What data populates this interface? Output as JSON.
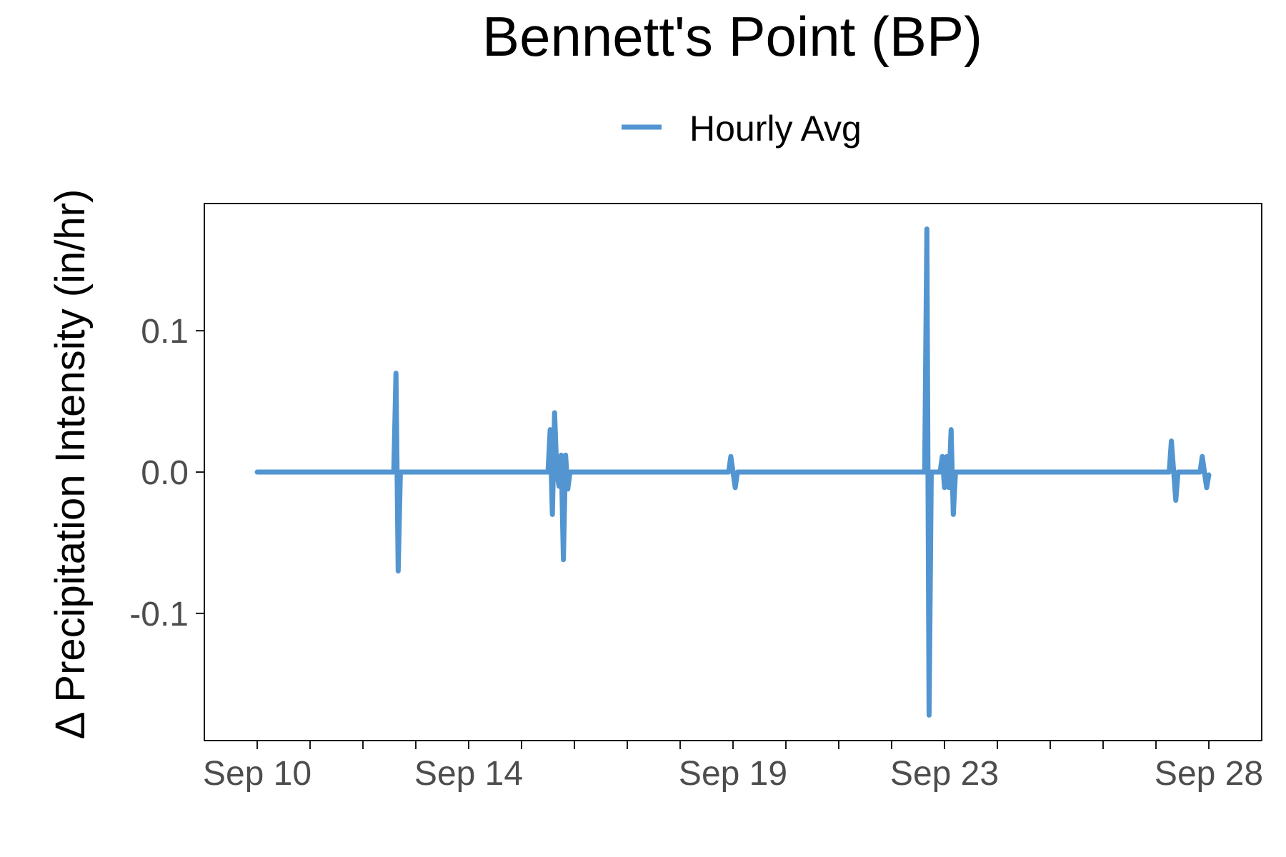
{
  "chart_data": {
    "type": "line",
    "title": "Bennett's Point (BP)",
    "ylabel": "Δ Precipitation Intensity (in/hr)",
    "xlabel": "",
    "ylim": [
      -0.19,
      0.19
    ],
    "xlim": [
      "2023-09-09T00:00",
      "2023-09-29T00:00"
    ],
    "yticks": [
      {
        "value": 0.1,
        "label": "0.1"
      },
      {
        "value": 0.0,
        "label": "0.0"
      },
      {
        "value": -0.1,
        "label": "-0.1"
      }
    ],
    "xticks_labeled": [
      {
        "date": "2023-09-10",
        "label": "Sep 10"
      },
      {
        "date": "2023-09-14",
        "label": "Sep 14"
      },
      {
        "date": "2023-09-19",
        "label": "Sep 19"
      },
      {
        "date": "2023-09-23",
        "label": "Sep 23"
      },
      {
        "date": "2023-09-28",
        "label": "Sep 28"
      }
    ],
    "xticks_minor": [
      "2023-09-11",
      "2023-09-12",
      "2023-09-13",
      "2023-09-15",
      "2023-09-16",
      "2023-09-17",
      "2023-09-18",
      "2023-09-20",
      "2023-09-21",
      "2023-09-22",
      "2023-09-24",
      "2023-09-25",
      "2023-09-26",
      "2023-09-27"
    ],
    "legend_position": "top",
    "grid": false,
    "series": [
      {
        "name": "Hourly Avg",
        "color": "#5295d0",
        "points": [
          [
            "2023-09-10T00:00",
            0.0
          ],
          [
            "2023-09-12T14:00",
            0.0
          ],
          [
            "2023-09-12T15:00",
            0.07
          ],
          [
            "2023-09-12T16:00",
            -0.07
          ],
          [
            "2023-09-12T17:00",
            0.0
          ],
          [
            "2023-09-15T12:00",
            0.0
          ],
          [
            "2023-09-15T13:00",
            0.03
          ],
          [
            "2023-09-15T14:00",
            -0.03
          ],
          [
            "2023-09-15T15:00",
            0.042
          ],
          [
            "2023-09-15T16:00",
            0.0
          ],
          [
            "2023-09-15T17:00",
            -0.01
          ],
          [
            "2023-09-15T18:00",
            0.012
          ],
          [
            "2023-09-15T19:00",
            -0.062
          ],
          [
            "2023-09-15T20:00",
            0.012
          ],
          [
            "2023-09-15T21:00",
            -0.012
          ],
          [
            "2023-09-15T22:00",
            0.0
          ],
          [
            "2023-09-18T22:00",
            0.0
          ],
          [
            "2023-09-18T23:00",
            0.011
          ],
          [
            "2023-09-19T01:00",
            -0.011
          ],
          [
            "2023-09-19T02:00",
            0.0
          ],
          [
            "2023-09-22T15:00",
            0.0
          ],
          [
            "2023-09-22T16:00",
            0.172
          ],
          [
            "2023-09-22T17:00",
            -0.172
          ],
          [
            "2023-09-22T18:00",
            0.0
          ],
          [
            "2023-09-22T22:00",
            0.0
          ],
          [
            "2023-09-22T23:00",
            0.011
          ],
          [
            "2023-09-23T00:00",
            -0.011
          ],
          [
            "2023-09-23T01:00",
            0.011
          ],
          [
            "2023-09-23T02:00",
            -0.011
          ],
          [
            "2023-09-23T03:00",
            0.03
          ],
          [
            "2023-09-23T04:00",
            -0.03
          ],
          [
            "2023-09-23T05:00",
            0.0
          ],
          [
            "2023-09-27T06:00",
            0.0
          ],
          [
            "2023-09-27T07:00",
            0.022
          ],
          [
            "2023-09-27T09:00",
            -0.02
          ],
          [
            "2023-09-27T10:00",
            0.0
          ],
          [
            "2023-09-27T20:00",
            0.0
          ],
          [
            "2023-09-27T21:00",
            0.011
          ],
          [
            "2023-09-27T23:00",
            -0.011
          ],
          [
            "2023-09-28T00:00",
            -0.002
          ]
        ]
      }
    ]
  }
}
